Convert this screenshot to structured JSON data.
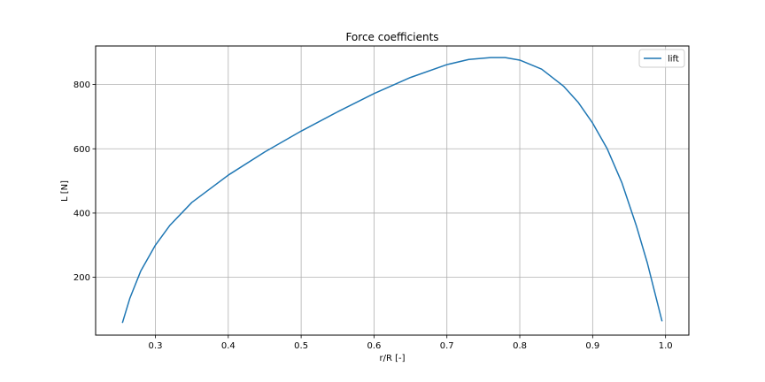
{
  "chart_data": {
    "type": "line",
    "title": "Force coefficients",
    "xlabel": "r/R [-]",
    "ylabel": "L [N]",
    "xlim": [
      0.218,
      1.032
    ],
    "ylim": [
      20,
      920
    ],
    "xticks": [
      0.3,
      0.4,
      0.5,
      0.6,
      0.7,
      0.8,
      0.9,
      1.0
    ],
    "xtick_labels": [
      "0.3",
      "0.4",
      "0.5",
      "0.6",
      "0.7",
      "0.8",
      "0.9",
      "1.0"
    ],
    "yticks": [
      200,
      400,
      600,
      800
    ],
    "ytick_labels": [
      "200",
      "400",
      "600",
      "800"
    ],
    "grid": true,
    "legend_position": "top-right",
    "series": [
      {
        "name": "lift",
        "color": "#1f77b4",
        "x": [
          0.255,
          0.265,
          0.28,
          0.3,
          0.32,
          0.35,
          0.4,
          0.45,
          0.5,
          0.55,
          0.6,
          0.65,
          0.7,
          0.73,
          0.76,
          0.78,
          0.8,
          0.83,
          0.86,
          0.88,
          0.9,
          0.92,
          0.94,
          0.96,
          0.975,
          0.985,
          0.995
        ],
        "y": [
          60,
          135,
          220,
          300,
          362,
          433,
          518,
          590,
          655,
          715,
          772,
          822,
          862,
          878,
          884,
          884,
          876,
          848,
          795,
          745,
          680,
          600,
          495,
          360,
          245,
          155,
          65
        ]
      }
    ]
  }
}
